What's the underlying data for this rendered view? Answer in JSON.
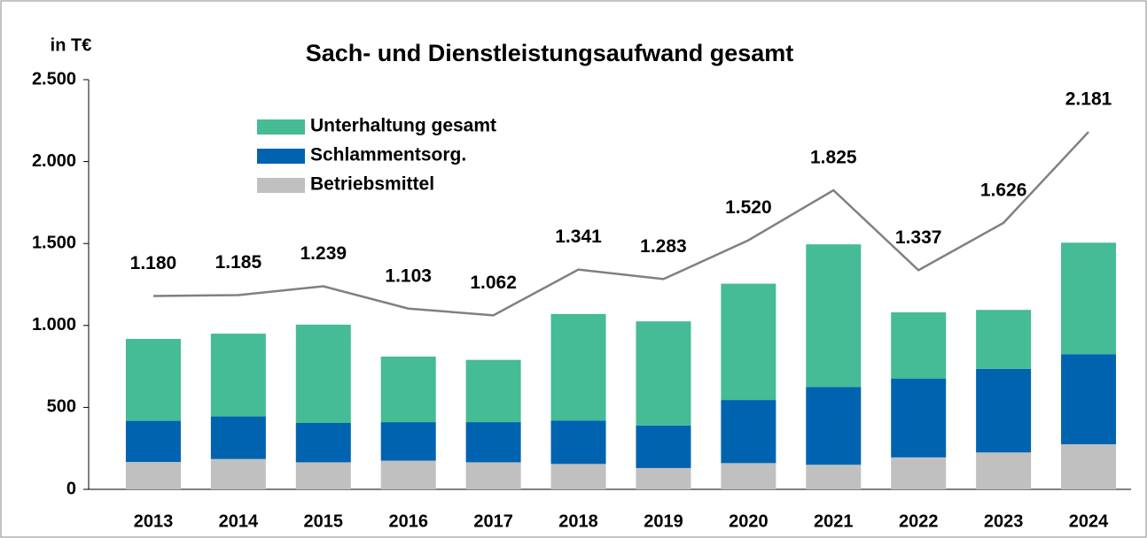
{
  "chart_data": {
    "type": "bar",
    "stacked": true,
    "title": "Sach- und Dienstleistungsaufwand gesamt",
    "y_label": "in T€",
    "categories": [
      "2013",
      "2014",
      "2015",
      "2016",
      "2017",
      "2018",
      "2019",
      "2020",
      "2021",
      "2022",
      "2023",
      "2024"
    ],
    "series": [
      {
        "name": "Betriebsmittel",
        "color": "#c0c0c0",
        "values": [
          167,
          185,
          165,
          175,
          165,
          155,
          130,
          160,
          150,
          195,
          225,
          275
        ]
      },
      {
        "name": "Schlammentsorg.",
        "color": "#0063b0",
        "values": [
          251,
          260,
          240,
          235,
          245,
          265,
          260,
          385,
          475,
          480,
          510,
          550
        ]
      },
      {
        "name": "Unterhaltung gesamt",
        "color": "#45bb96",
        "values": [
          500,
          505,
          600,
          400,
          380,
          650,
          635,
          710,
          870,
          405,
          360,
          680
        ]
      }
    ],
    "total_line": {
      "type": "line",
      "color": "#808080",
      "values": [
        1180,
        1185,
        1239,
        1103,
        1062,
        1341,
        1283,
        1520,
        1825,
        1337,
        1626,
        2181
      ],
      "value_labels": [
        "1.180",
        "1.185",
        "1.239",
        "1.103",
        "1.062",
        "1.341",
        "1.283",
        "1.520",
        "1.825",
        "1.337",
        "1.626",
        "2.181"
      ]
    },
    "ylim": [
      0,
      2500
    ],
    "yticks": [
      0,
      500,
      {
        "value": 1000,
        "label": "1.000"
      },
      {
        "value": 1500,
        "label": "1.500"
      },
      {
        "value": 2000,
        "label": "2.000"
      },
      {
        "value": 2500,
        "label": "2.500"
      }
    ],
    "grid": false
  }
}
